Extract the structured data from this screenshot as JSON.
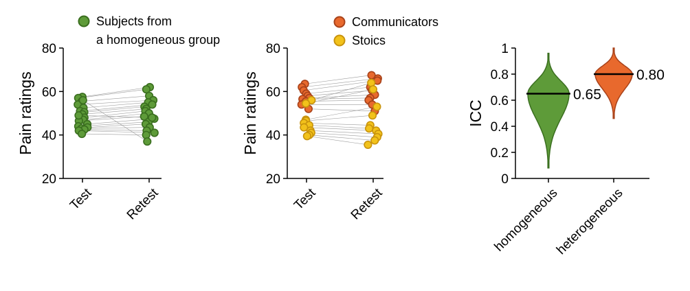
{
  "colors": {
    "green_fill": "#5e9b39",
    "green_edge": "#3a6e1f",
    "orange_fill": "#e8692d",
    "orange_edge": "#a8421a",
    "yellow_fill": "#f2c21b",
    "yellow_edge": "#c8930d",
    "pair_line": "#9a9a9a",
    "axis": "#000000"
  },
  "chart_data": [
    {
      "type": "scatter",
      "panel": "homogeneous-paired",
      "ylabel": "Pain ratings",
      "ylim": [
        20,
        80
      ],
      "yticks": [
        20,
        40,
        60,
        80
      ],
      "categories": [
        "Test",
        "Retest"
      ],
      "legend": {
        "position": "top",
        "entries": [
          {
            "lines": [
              "Subjects from",
              "a homogeneous group"
            ],
            "color": "green"
          }
        ]
      },
      "series": [
        {
          "name": "Subjects from a homogeneous group",
          "color": "green",
          "test": [
            57.5,
            57,
            55.5,
            54,
            52.5,
            51,
            50.5,
            49.5,
            48,
            47,
            46.5,
            45,
            44,
            43.5,
            43,
            42.5,
            42,
            40.5,
            56,
            49
          ],
          "retest": [
            62,
            61,
            58,
            56,
            55,
            54,
            53,
            52,
            51,
            50,
            48.5,
            47.5,
            46,
            45,
            43.5,
            42,
            41,
            40,
            37,
            48
          ]
        }
      ]
    },
    {
      "type": "scatter",
      "panel": "heterogeneous-paired",
      "ylabel": "Pain ratings",
      "ylim": [
        20,
        80
      ],
      "yticks": [
        20,
        40,
        60,
        80
      ],
      "categories": [
        "Test",
        "Retest"
      ],
      "legend": {
        "position": "top",
        "entries": [
          {
            "lines": [
              "Communicators"
            ],
            "color": "orange"
          },
          {
            "lines": [
              "Stoics"
            ],
            "color": "yellow"
          }
        ]
      },
      "series": [
        {
          "name": "Communicators",
          "color": "orange",
          "test": [
            63.5,
            62,
            60.5,
            59,
            58,
            57,
            56.5,
            55.5,
            54,
            52
          ],
          "retest": [
            67.5,
            66,
            65,
            62,
            60.5,
            58.5,
            57,
            56,
            54,
            51
          ]
        },
        {
          "name": "Stoics",
          "color": "yellow",
          "test": [
            56,
            54.5,
            47,
            46.5,
            45.5,
            44.5,
            43.5,
            42,
            41,
            40,
            39.5
          ],
          "retest": [
            64,
            61,
            53,
            49,
            44.5,
            43,
            42,
            40.5,
            39,
            37.5,
            35.5
          ]
        }
      ]
    },
    {
      "type": "violin",
      "panel": "icc",
      "ylabel": "ICC",
      "ylim": [
        0,
        1
      ],
      "yticks": [
        "0",
        "0.2",
        "0.4",
        "0.6",
        "0.8",
        "1"
      ],
      "categories": [
        "homogeneous",
        "heterogeneous"
      ],
      "series": [
        {
          "name": "homogeneous",
          "color": "green",
          "median": 0.65,
          "median_label": "0.65",
          "min": 0.08,
          "max": 0.96
        },
        {
          "name": "heterogeneous",
          "color": "orange",
          "median": 0.8,
          "median_label": "0.80",
          "min": 0.46,
          "max": 1.0
        }
      ]
    }
  ]
}
